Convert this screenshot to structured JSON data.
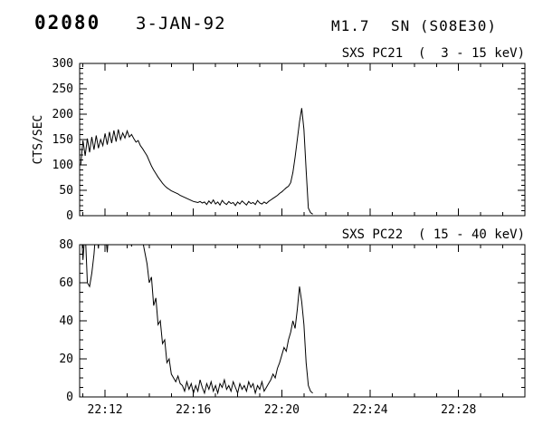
{
  "header": {
    "event_id": "02080",
    "date": "3-JAN-92",
    "flare_class": "M1.7",
    "flare_type_location": "SN (S08E30)"
  },
  "chart_data": [
    {
      "type": "line",
      "title": "SXS PC21  (  3 - 15 keV)",
      "ylabel": "CTS/SEC",
      "xlabel": "",
      "grid": false,
      "xlim": [
        10.85,
        31.0
      ],
      "ylim": [
        0,
        300
      ],
      "yticks": [
        0,
        50,
        100,
        150,
        200,
        250,
        300
      ],
      "y_minor_step": 10,
      "xticks": [
        12,
        16,
        20,
        24,
        28
      ],
      "xtick_labels": [
        "22:12",
        "22:16",
        "22:20",
        "22:24",
        "22:28"
      ],
      "show_xtick_labels": false,
      "x_minor_step": 1,
      "x_unit": "minutes after 22:00 UT",
      "series": [
        {
          "name": "SXS PC21 3-15 keV counts",
          "x_start": 10.9,
          "x_step": 0.1,
          "values": [
            100,
            148,
            118,
            152,
            125,
            155,
            130,
            158,
            133,
            150,
            138,
            162,
            140,
            165,
            143,
            168,
            146,
            170,
            150,
            163,
            153,
            167,
            155,
            160,
            152,
            145,
            148,
            138,
            132,
            125,
            118,
            108,
            98,
            90,
            83,
            76,
            70,
            64,
            59,
            55,
            52,
            49,
            47,
            45,
            43,
            40,
            38,
            36,
            34,
            32,
            30,
            28,
            27,
            26,
            28,
            25,
            27,
            22,
            29,
            24,
            31,
            23,
            27,
            21,
            30,
            25,
            22,
            28,
            24,
            26,
            20,
            27,
            23,
            29,
            25,
            21,
            28,
            24,
            26,
            22,
            30,
            25,
            23,
            27,
            24,
            28,
            31,
            34,
            37,
            40,
            44,
            47,
            51,
            55,
            58,
            65,
            85,
            115,
            150,
            185,
            212,
            170,
            90,
            15,
            6,
            3
          ]
        }
      ]
    },
    {
      "type": "line",
      "title": "SXS PC22  ( 15 - 40 keV)",
      "ylabel": "",
      "xlabel": "",
      "grid": false,
      "xlim": [
        10.85,
        31.0
      ],
      "ylim": [
        0,
        80
      ],
      "yticks": [
        0,
        20,
        40,
        60,
        80
      ],
      "y_minor_step": 5,
      "xticks": [
        12,
        16,
        20,
        24,
        28
      ],
      "xtick_labels": [
        "22:12",
        "22:16",
        "22:20",
        "22:24",
        "22:28"
      ],
      "show_xtick_labels": true,
      "x_minor_step": 1,
      "x_unit": "minutes after 22:00 UT",
      "series": [
        {
          "name": "SXS PC22 15-40 keV counts",
          "x_start": 10.9,
          "x_step": 0.1,
          "values": [
            95,
            72,
            88,
            60,
            58,
            65,
            75,
            90,
            78,
            95,
            82,
            88,
            76,
            92,
            85,
            96,
            80,
            89,
            94,
            83,
            91,
            86,
            95,
            79,
            90,
            84,
            93,
            88,
            82,
            76,
            70,
            60,
            63,
            48,
            52,
            38,
            40,
            28,
            30,
            18,
            20,
            12,
            10,
            8,
            11,
            7,
            6,
            3,
            8,
            4,
            7,
            2,
            6,
            3,
            9,
            5,
            2,
            7,
            4,
            8,
            3,
            6,
            2,
            7,
            5,
            9,
            4,
            6,
            3,
            8,
            5,
            2,
            7,
            4,
            6,
            3,
            8,
            5,
            7,
            2,
            6,
            4,
            8,
            3,
            5,
            7,
            9,
            12,
            10,
            15,
            18,
            22,
            26,
            24,
            30,
            34,
            40,
            36,
            46,
            58,
            50,
            38,
            18,
            6,
            3,
            2
          ]
        }
      ]
    }
  ]
}
